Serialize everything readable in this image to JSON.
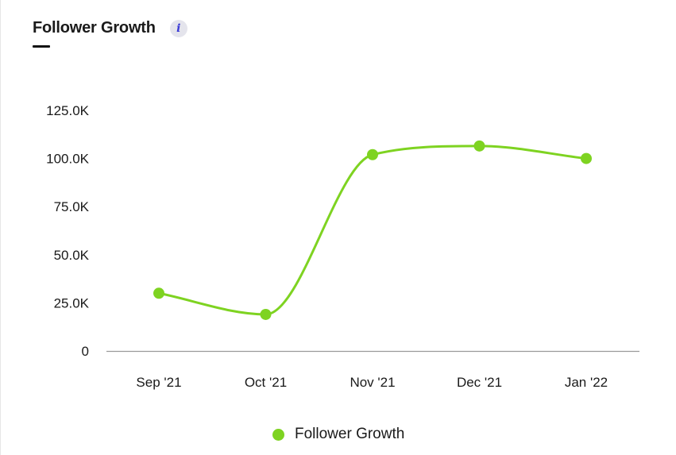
{
  "header": {
    "title": "Follower Growth",
    "info_icon": "info-icon",
    "info_glyph": "i"
  },
  "colors": {
    "series": "#7ed321",
    "axis": "#9a9a9a",
    "text": "#1a1a1a"
  },
  "legend": {
    "label": "Follower Growth"
  },
  "chart_data": {
    "type": "line",
    "title": "Follower Growth",
    "xlabel": "",
    "ylabel": "",
    "categories": [
      "Sep '21",
      "Oct '21",
      "Nov '21",
      "Dec '21",
      "Jan '22"
    ],
    "series": [
      {
        "name": "Follower Growth",
        "values": [
          30000,
          19000,
          102000,
          106500,
          100000
        ]
      }
    ],
    "ylim": [
      0,
      125000
    ],
    "y_ticks": [
      0,
      25000,
      50000,
      75000,
      100000,
      125000
    ],
    "y_tick_labels": [
      "0",
      "25.0K",
      "50.0K",
      "75.0K",
      "100.0K",
      "125.0K"
    ],
    "grid": false,
    "legend_position": "bottom-center",
    "smooth": true,
    "markers": true
  }
}
